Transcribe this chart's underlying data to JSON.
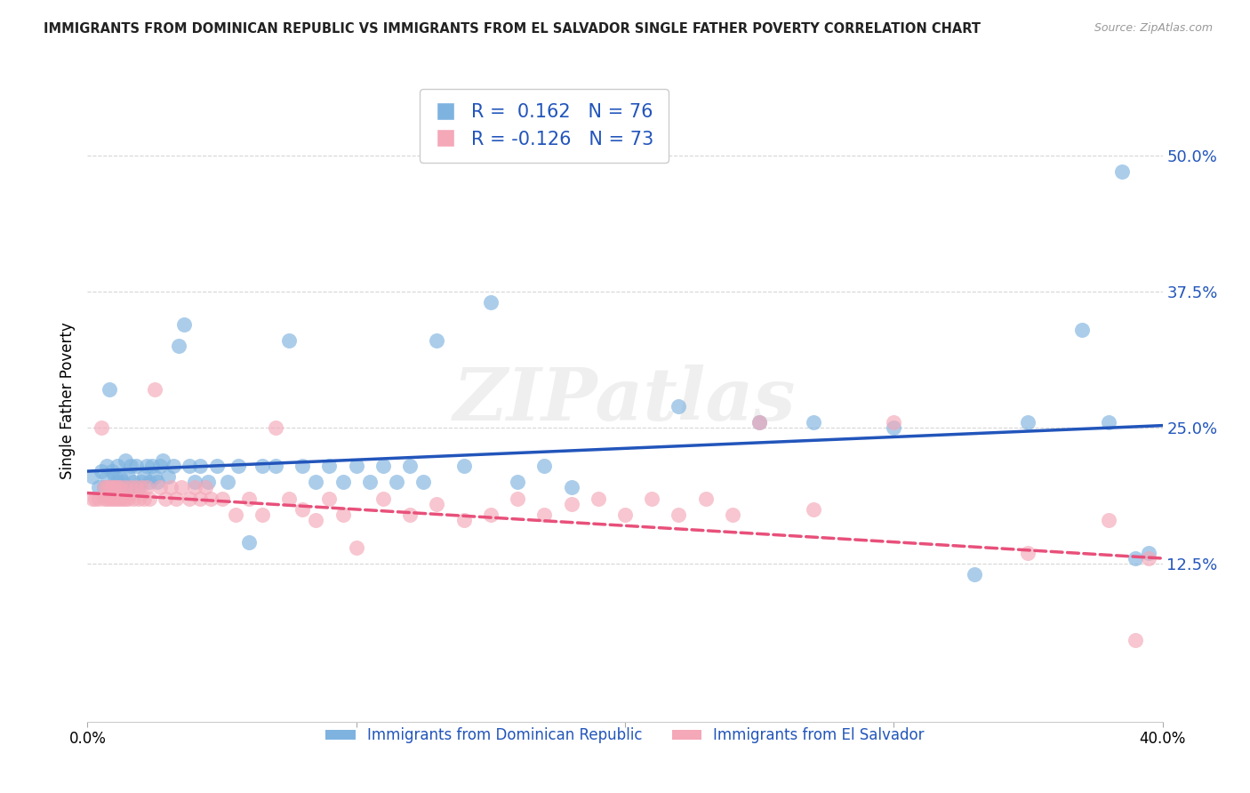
{
  "title": "IMMIGRANTS FROM DOMINICAN REPUBLIC VS IMMIGRANTS FROM EL SALVADOR SINGLE FATHER POVERTY CORRELATION CHART",
  "source": "Source: ZipAtlas.com",
  "ylabel": "Single Father Poverty",
  "xlim": [
    0,
    0.4
  ],
  "ylim": [
    -0.02,
    0.57
  ],
  "yticks": [
    0.125,
    0.25,
    0.375,
    0.5
  ],
  "ytick_labels": [
    "12.5%",
    "25.0%",
    "37.5%",
    "50.0%"
  ],
  "xtick_positions": [
    0,
    0.1,
    0.2,
    0.3,
    0.4
  ],
  "xtick_labels": [
    "0.0%",
    "",
    "",
    "",
    "40.0%"
  ],
  "r_blue": 0.162,
  "n_blue": 76,
  "r_pink": -0.126,
  "n_pink": 73,
  "blue_color": "#7EB3E0",
  "pink_color": "#F4A8B8",
  "blue_line_color": "#2255BB",
  "pink_line_color": "#E8507A",
  "watermark": "ZIPatlas",
  "legend_label_blue": "Immigrants from Dominican Republic",
  "legend_label_pink": "Immigrants from El Salvador",
  "blue_x": [
    0.002,
    0.004,
    0.005,
    0.006,
    0.007,
    0.007,
    0.008,
    0.008,
    0.009,
    0.009,
    0.01,
    0.01,
    0.011,
    0.011,
    0.012,
    0.012,
    0.013,
    0.013,
    0.014,
    0.015,
    0.015,
    0.016,
    0.017,
    0.018,
    0.019,
    0.02,
    0.021,
    0.022,
    0.023,
    0.024,
    0.025,
    0.026,
    0.027,
    0.028,
    0.03,
    0.032,
    0.034,
    0.036,
    0.038,
    0.04,
    0.042,
    0.045,
    0.048,
    0.052,
    0.056,
    0.06,
    0.065,
    0.07,
    0.075,
    0.08,
    0.085,
    0.09,
    0.095,
    0.1,
    0.105,
    0.11,
    0.115,
    0.12,
    0.125,
    0.13,
    0.14,
    0.15,
    0.16,
    0.17,
    0.18,
    0.22,
    0.25,
    0.27,
    0.3,
    0.33,
    0.35,
    0.37,
    0.38,
    0.385,
    0.39,
    0.395
  ],
  "blue_y": [
    0.205,
    0.195,
    0.21,
    0.195,
    0.205,
    0.215,
    0.195,
    0.285,
    0.195,
    0.21,
    0.195,
    0.205,
    0.2,
    0.215,
    0.195,
    0.205,
    0.2,
    0.195,
    0.22,
    0.195,
    0.205,
    0.215,
    0.2,
    0.215,
    0.195,
    0.2,
    0.205,
    0.215,
    0.2,
    0.215,
    0.205,
    0.2,
    0.215,
    0.22,
    0.205,
    0.215,
    0.325,
    0.345,
    0.215,
    0.2,
    0.215,
    0.2,
    0.215,
    0.2,
    0.215,
    0.145,
    0.215,
    0.215,
    0.33,
    0.215,
    0.2,
    0.215,
    0.2,
    0.215,
    0.2,
    0.215,
    0.2,
    0.215,
    0.2,
    0.33,
    0.215,
    0.365,
    0.2,
    0.215,
    0.195,
    0.27,
    0.255,
    0.255,
    0.25,
    0.115,
    0.255,
    0.34,
    0.255,
    0.485,
    0.13,
    0.135
  ],
  "pink_x": [
    0.002,
    0.003,
    0.004,
    0.005,
    0.006,
    0.006,
    0.007,
    0.007,
    0.008,
    0.008,
    0.009,
    0.009,
    0.01,
    0.01,
    0.011,
    0.011,
    0.012,
    0.012,
    0.013,
    0.014,
    0.014,
    0.015,
    0.016,
    0.017,
    0.018,
    0.019,
    0.02,
    0.021,
    0.022,
    0.023,
    0.025,
    0.027,
    0.029,
    0.031,
    0.033,
    0.035,
    0.038,
    0.04,
    0.042,
    0.044,
    0.046,
    0.05,
    0.055,
    0.06,
    0.065,
    0.07,
    0.075,
    0.08,
    0.085,
    0.09,
    0.095,
    0.1,
    0.11,
    0.12,
    0.13,
    0.14,
    0.15,
    0.16,
    0.17,
    0.18,
    0.19,
    0.2,
    0.21,
    0.22,
    0.23,
    0.24,
    0.25,
    0.27,
    0.3,
    0.35,
    0.38,
    0.39,
    0.395
  ],
  "pink_y": [
    0.185,
    0.185,
    0.185,
    0.25,
    0.185,
    0.195,
    0.185,
    0.195,
    0.185,
    0.195,
    0.185,
    0.195,
    0.185,
    0.195,
    0.185,
    0.195,
    0.185,
    0.195,
    0.185,
    0.185,
    0.195,
    0.185,
    0.195,
    0.185,
    0.195,
    0.185,
    0.195,
    0.185,
    0.195,
    0.185,
    0.285,
    0.195,
    0.185,
    0.195,
    0.185,
    0.195,
    0.185,
    0.195,
    0.185,
    0.195,
    0.185,
    0.185,
    0.17,
    0.185,
    0.17,
    0.25,
    0.185,
    0.175,
    0.165,
    0.185,
    0.17,
    0.14,
    0.185,
    0.17,
    0.18,
    0.165,
    0.17,
    0.185,
    0.17,
    0.18,
    0.185,
    0.17,
    0.185,
    0.17,
    0.185,
    0.17,
    0.255,
    0.175,
    0.255,
    0.135,
    0.165,
    0.055,
    0.13
  ]
}
